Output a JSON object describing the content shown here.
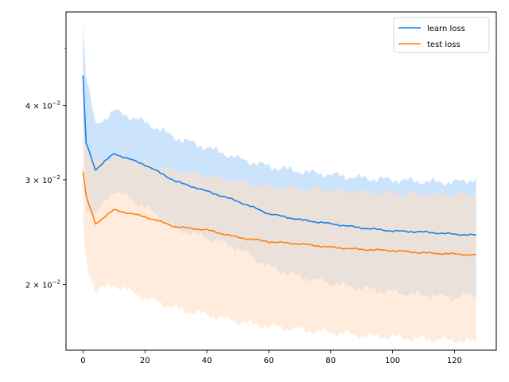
{
  "chart_data": {
    "type": "line",
    "title": "",
    "xlabel": "",
    "ylabel": "",
    "x_range": [
      -5.5,
      133.5
    ],
    "y_range": [
      0.0155,
      0.0575
    ],
    "y_scale": "log",
    "grid": false,
    "legend_position": "top-right",
    "x_ticks": [
      {
        "value": 0,
        "label": "0"
      },
      {
        "value": 20,
        "label": "20"
      },
      {
        "value": 40,
        "label": "40"
      },
      {
        "value": 60,
        "label": "60"
      },
      {
        "value": 80,
        "label": "80"
      },
      {
        "value": 100,
        "label": "100"
      },
      {
        "value": 120,
        "label": "120"
      }
    ],
    "y_ticks": [
      {
        "value": 0.02,
        "mantissa": "2",
        "base": "10",
        "exponent": "−2"
      },
      {
        "value": 0.03,
        "mantissa": "3",
        "base": "10",
        "exponent": "−2"
      },
      {
        "value": 0.04,
        "mantissa": "4",
        "base": "10",
        "exponent": "−2"
      }
    ],
    "y_minor_ticks": [
      0.05
    ],
    "series": [
      {
        "name": "learn loss",
        "color": "#1a80e6",
        "band_color": "#bfdcfb",
        "points": [
          [
            0,
            0.0448,
            0.0555,
            0.038
          ],
          [
            1,
            0.0346,
            0.0447,
            0.0268
          ],
          [
            4,
            0.0312,
            0.037,
            0.0262
          ],
          [
            10,
            0.0332,
            0.0392,
            0.0288
          ],
          [
            20,
            0.0318,
            0.0375,
            0.027
          ],
          [
            30,
            0.0298,
            0.0353,
            0.0248
          ],
          [
            40,
            0.0287,
            0.034,
            0.024
          ],
          [
            50,
            0.0276,
            0.0326,
            0.023
          ],
          [
            60,
            0.0263,
            0.0316,
            0.0214
          ],
          [
            70,
            0.0257,
            0.031,
            0.0206
          ],
          [
            80,
            0.0253,
            0.0306,
            0.0201
          ],
          [
            90,
            0.0249,
            0.0302,
            0.0197
          ],
          [
            100,
            0.0246,
            0.03,
            0.0194
          ],
          [
            110,
            0.0245,
            0.0298,
            0.0192
          ],
          [
            120,
            0.0243,
            0.0297,
            0.019
          ],
          [
            127,
            0.0242,
            0.0301,
            0.0192
          ]
        ]
      },
      {
        "name": "test loss",
        "color": "#ff7f0e",
        "band_color": "#ffdfc4",
        "points": [
          [
            0,
            0.031,
            0.0385,
            0.0255
          ],
          [
            1,
            0.0281,
            0.034,
            0.0218
          ],
          [
            4,
            0.0253,
            0.032,
            0.0195
          ],
          [
            10,
            0.0267,
            0.033,
            0.02
          ],
          [
            20,
            0.026,
            0.032,
            0.019
          ],
          [
            30,
            0.025,
            0.031,
            0.0182
          ],
          [
            40,
            0.0247,
            0.0305,
            0.0178
          ],
          [
            50,
            0.024,
            0.0298,
            0.0173
          ],
          [
            60,
            0.0236,
            0.0292,
            0.017
          ],
          [
            70,
            0.0234,
            0.029,
            0.0168
          ],
          [
            80,
            0.0231,
            0.0288,
            0.0166
          ],
          [
            90,
            0.0229,
            0.0286,
            0.0164
          ],
          [
            100,
            0.0228,
            0.0285,
            0.0163
          ],
          [
            110,
            0.0226,
            0.0284,
            0.0162
          ],
          [
            120,
            0.0225,
            0.0283,
            0.0161
          ],
          [
            127,
            0.0224,
            0.0284,
            0.016
          ]
        ]
      }
    ]
  }
}
